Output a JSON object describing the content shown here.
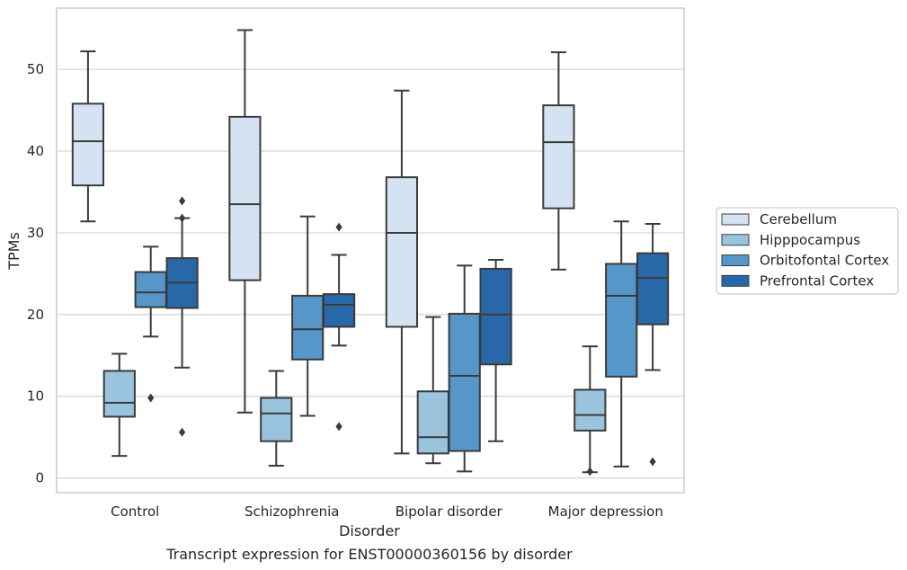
{
  "chart_data": {
    "type": "box",
    "title": "",
    "caption": "Transcript expression for ENST00000360156 by disorder",
    "xlabel": "Disorder",
    "ylabel": "TPMs",
    "ylim": [
      -1.8,
      57.5
    ],
    "yticks": [
      0,
      10,
      20,
      30,
      40,
      50
    ],
    "grid": "horizontal",
    "legend_position": "right",
    "categories": [
      "Control",
      "Schizophrenia",
      "Bipolar disorder",
      "Major depression"
    ],
    "series": [
      {
        "name": "Cerebellum",
        "color": "#d5e2f1",
        "boxes": [
          {
            "whisker_low": 31.4,
            "q1": 35.8,
            "median": 41.2,
            "q3": 45.8,
            "whisker_high": 52.2,
            "outliers": []
          },
          {
            "whisker_low": 8.0,
            "q1": 24.2,
            "median": 33.5,
            "q3": 44.2,
            "whisker_high": 54.8,
            "outliers": []
          },
          {
            "whisker_low": 3.0,
            "q1": 18.5,
            "median": 30.0,
            "q3": 36.8,
            "whisker_high": 47.4,
            "outliers": []
          },
          {
            "whisker_low": 25.5,
            "q1": 33.0,
            "median": 41.1,
            "q3": 45.6,
            "whisker_high": 52.1,
            "outliers": []
          }
        ]
      },
      {
        "name": "Hipppocampus",
        "color": "#9ac3de",
        "boxes": [
          {
            "whisker_low": 2.7,
            "q1": 7.5,
            "median": 9.2,
            "q3": 13.1,
            "whisker_high": 15.2,
            "outliers": []
          },
          {
            "whisker_low": 1.5,
            "q1": 4.5,
            "median": 7.9,
            "q3": 9.8,
            "whisker_high": 13.1,
            "outliers": []
          },
          {
            "whisker_low": 1.8,
            "q1": 3.0,
            "median": 5.0,
            "q3": 10.6,
            "whisker_high": 19.7,
            "outliers": []
          },
          {
            "whisker_low": 0.7,
            "q1": 5.8,
            "median": 7.7,
            "q3": 10.8,
            "whisker_high": 16.1,
            "outliers": [
              0.8
            ]
          }
        ]
      },
      {
        "name": "Orbitofontal Cortex",
        "color": "#5696c8",
        "boxes": [
          {
            "whisker_low": 17.3,
            "q1": 20.9,
            "median": 22.7,
            "q3": 25.2,
            "whisker_high": 28.3,
            "outliers": [
              9.8
            ]
          },
          {
            "whisker_low": 7.6,
            "q1": 14.5,
            "median": 18.2,
            "q3": 22.3,
            "whisker_high": 32.0,
            "outliers": []
          },
          {
            "whisker_low": 0.8,
            "q1": 3.3,
            "median": 12.5,
            "q3": 20.1,
            "whisker_high": 26.0,
            "outliers": []
          },
          {
            "whisker_low": 1.4,
            "q1": 12.4,
            "median": 22.3,
            "q3": 26.2,
            "whisker_high": 31.4,
            "outliers": []
          }
        ]
      },
      {
        "name": "Prefrontal Cortex",
        "color": "#2868a8",
        "boxes": [
          {
            "whisker_low": 13.5,
            "q1": 20.8,
            "median": 23.9,
            "q3": 26.9,
            "whisker_high": 31.8,
            "outliers": [
              33.9,
              31.8,
              5.6
            ]
          },
          {
            "whisker_low": 16.2,
            "q1": 18.5,
            "median": 21.2,
            "q3": 22.5,
            "whisker_high": 27.3,
            "outliers": [
              30.7,
              6.3
            ]
          },
          {
            "whisker_low": 4.5,
            "q1": 13.9,
            "median": 20.0,
            "q3": 25.6,
            "whisker_high": 26.7,
            "outliers": []
          },
          {
            "whisker_low": 13.2,
            "q1": 18.8,
            "median": 24.5,
            "q3": 27.5,
            "whisker_high": 31.1,
            "outliers": [
              2.0
            ]
          }
        ]
      }
    ]
  }
}
